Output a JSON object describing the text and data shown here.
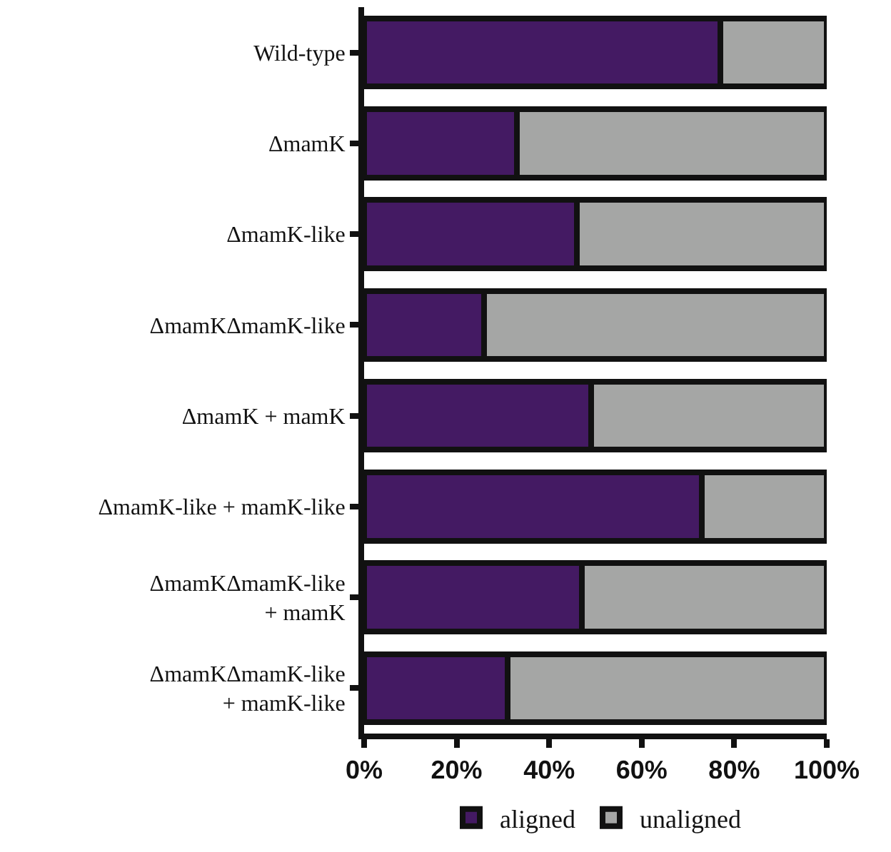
{
  "chart_data": {
    "type": "bar",
    "orientation": "horizontal",
    "stacked": true,
    "categories": [
      "Wild-type",
      "ΔmamK",
      "ΔmamK-like",
      "ΔmamKΔmamK-like",
      "ΔmamK + mamK",
      "ΔmamK-like + mamK-like",
      "ΔmamKΔmamK-like\n+ mamK",
      "ΔmamKΔmamK-like\n+ mamK-like"
    ],
    "series": [
      {
        "name": "aligned",
        "color": "#441a63",
        "values": [
          77,
          33,
          46,
          26,
          49,
          73,
          47,
          31
        ]
      },
      {
        "name": "unaligned",
        "color": "#a5a6a5",
        "values": [
          23,
          67,
          54,
          74,
          51,
          27,
          53,
          69
        ]
      }
    ],
    "xlim": [
      0,
      100
    ],
    "xticks": [
      {
        "value": 0,
        "label": "0%"
      },
      {
        "value": 20,
        "label": "20%"
      },
      {
        "value": 40,
        "label": "40%"
      },
      {
        "value": 60,
        "label": "60%"
      },
      {
        "value": 80,
        "label": "80%"
      },
      {
        "value": 100,
        "label": "100%"
      }
    ],
    "legend": "bottom"
  }
}
